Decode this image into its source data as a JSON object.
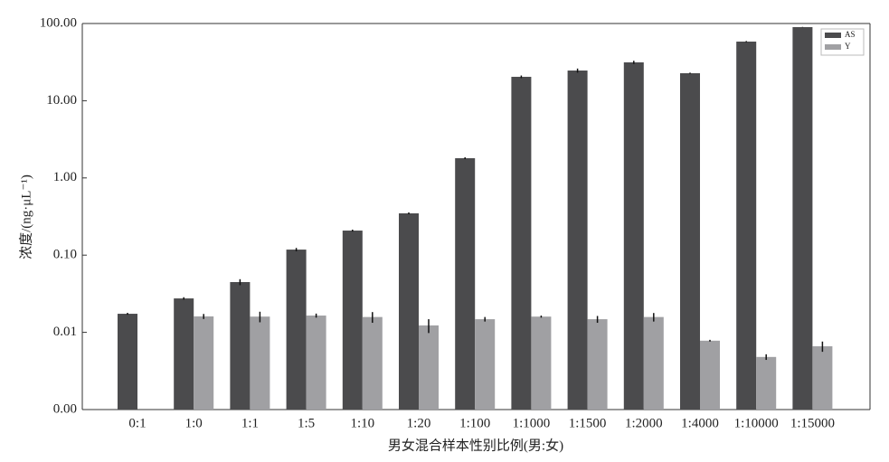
{
  "chart_data": {
    "type": "bar",
    "log_scale": true,
    "y_label": "浓度/(ng·μL⁻¹)",
    "x_label": "男女混合样本性别比例(男:女)",
    "categories": [
      "0:1",
      "1:0",
      "1:1",
      "1:5",
      "1:10",
      "1:20",
      "1:100",
      "1:1000",
      "1:1500",
      "1:2000",
      "1:4000",
      "1:10000",
      "1:15000"
    ],
    "series": [
      {
        "name": "AS",
        "color": "#4b4b4d",
        "values": [
          0.0174,
          0.0275,
          0.0448,
          0.118,
          0.208,
          0.348,
          1.8,
          20.4,
          24.6,
          31.4,
          22.7,
          58.3,
          89.8
        ],
        "errors": [
          0.0005,
          0.001,
          0.004,
          0.006,
          0.006,
          0.01,
          0.05,
          0.8,
          1.5,
          1.5,
          0.4,
          1,
          0.5
        ]
      },
      {
        "name": "Y",
        "color": "#a0a0a3",
        "values": [
          null,
          0.0161,
          0.016,
          0.0165,
          0.0158,
          0.0123,
          0.0148,
          0.016,
          0.0148,
          0.0158,
          0.0078,
          0.0048,
          0.0066
        ],
        "errors": [
          null,
          0.0012,
          0.0025,
          0.001,
          0.0025,
          0.0025,
          0.001,
          0.0005,
          0.0015,
          0.002,
          0.0002,
          0.0004,
          0.001
        ]
      }
    ],
    "ylim": [
      0.001,
      100
    ],
    "yticks": [
      {
        "value": 0.001,
        "label": "0.00"
      },
      {
        "value": 0.01,
        "label": "0.01"
      },
      {
        "value": 0.1,
        "label": "0.10"
      },
      {
        "value": 1,
        "label": "1.00"
      },
      {
        "value": 10,
        "label": "10.00"
      },
      {
        "value": 100,
        "label": "100.00"
      }
    ],
    "legend": "top-right"
  }
}
